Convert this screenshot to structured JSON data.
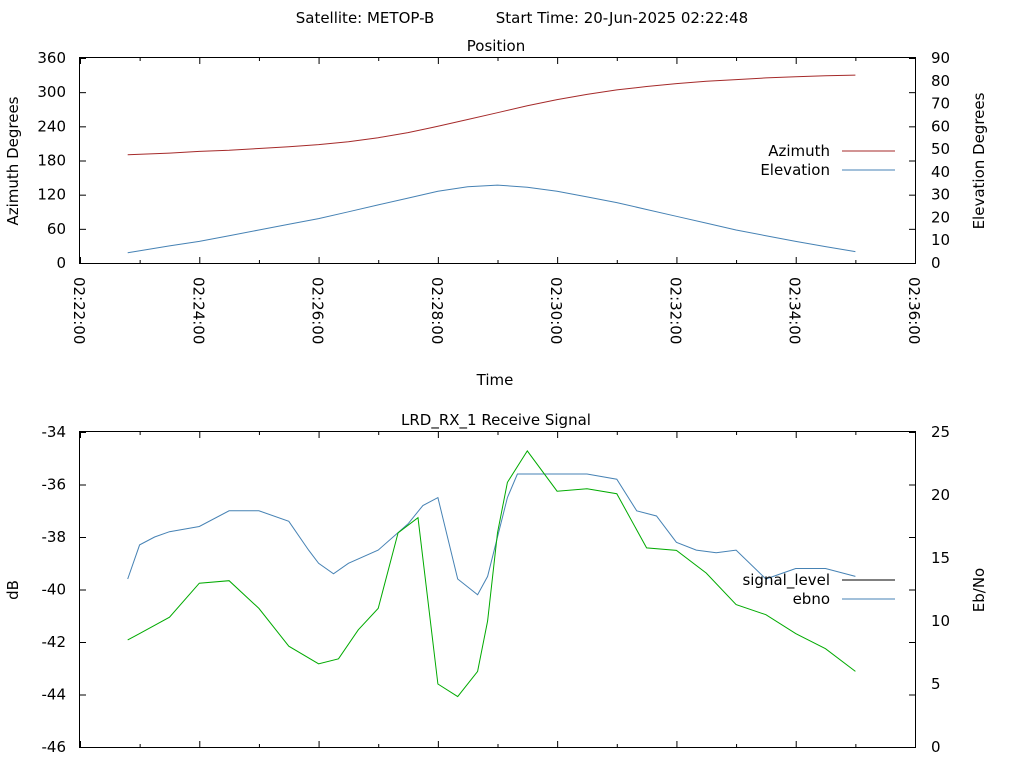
{
  "header": {
    "satellite": "Satellite: METOP-B",
    "start_time": "Start Time: 20-Jun-2025 02:22:48"
  },
  "chart_data": [
    {
      "type": "line",
      "title": "Position",
      "xlabel": "Time",
      "ylabel": "Azimuth Degrees",
      "y2label": "Elevation Degrees",
      "x_ticks": [
        "02:22:00",
        "02:24:00",
        "02:26:00",
        "02:28:00",
        "02:30:00",
        "02:32:00",
        "02:34:00",
        "02:36:00"
      ],
      "xlim": [
        "02:22:00",
        "02:36:00"
      ],
      "ylim": [
        0,
        360
      ],
      "y_ticks": [
        "0",
        "60",
        "120",
        "180",
        "240",
        "300",
        "360"
      ],
      "y2lim": [
        0,
        90
      ],
      "y2_ticks": [
        "0",
        "10",
        "20",
        "30",
        "40",
        "50",
        "60",
        "70",
        "80",
        "90"
      ],
      "legend_position": "right",
      "grid": false,
      "series": [
        {
          "name": "Azimuth",
          "axis": "y",
          "color": "#a52a2a",
          "x": [
            "02:22:48",
            "02:23:30",
            "02:24:00",
            "02:24:30",
            "02:25:00",
            "02:25:30",
            "02:26:00",
            "02:26:30",
            "02:27:00",
            "02:27:30",
            "02:28:00",
            "02:28:30",
            "02:29:00",
            "02:29:30",
            "02:30:00",
            "02:30:30",
            "02:31:00",
            "02:31:30",
            "02:32:00",
            "02:32:30",
            "02:33:00",
            "02:33:30",
            "02:34:00",
            "02:34:30",
            "02:35:00"
          ],
          "values": [
            190,
            193,
            196,
            198,
            201,
            204,
            208,
            213,
            220,
            229,
            240,
            252,
            264,
            276,
            287,
            296,
            304,
            310,
            315,
            319,
            322,
            325,
            327,
            329,
            330
          ]
        },
        {
          "name": "Elevation",
          "axis": "y2",
          "color": "#4682b4",
          "x": [
            "02:22:48",
            "02:23:30",
            "02:24:00",
            "02:24:30",
            "02:25:00",
            "02:25:30",
            "02:26:00",
            "02:26:30",
            "02:27:00",
            "02:27:30",
            "02:28:00",
            "02:28:30",
            "02:29:00",
            "02:29:30",
            "02:30:00",
            "02:30:30",
            "02:31:00",
            "02:31:30",
            "02:32:00",
            "02:32:30",
            "02:33:00",
            "02:33:30",
            "02:34:00",
            "02:34:30",
            "02:35:00"
          ],
          "values": [
            4.5,
            7.5,
            9.5,
            12,
            14.5,
            17,
            19.5,
            22.5,
            25.5,
            28.5,
            31.5,
            33.5,
            34.2,
            33.3,
            31.5,
            29,
            26.5,
            23.5,
            20.5,
            17.5,
            14.5,
            12,
            9.5,
            7.2,
            5
          ]
        }
      ]
    },
    {
      "type": "line",
      "title": "LRD_RX_1 Receive Signal",
      "ylabel": "dB",
      "y2label": "Eb/No",
      "ylim": [
        -46,
        -34
      ],
      "y_ticks": [
        "-34",
        "-36",
        "-38",
        "-40",
        "-42",
        "-44",
        "-46"
      ],
      "y2lim": [
        0,
        25
      ],
      "y2_ticks": [
        "0",
        "5",
        "10",
        "15",
        "20",
        "25"
      ],
      "xlim": [
        "02:22:00",
        "02:36:00"
      ],
      "legend_position": "right",
      "grid": false,
      "series": [
        {
          "name": "signal_level",
          "axis": "y",
          "color": "#4682b4",
          "x": [
            "02:22:48",
            "02:23:00",
            "02:23:15",
            "02:23:30",
            "02:24:00",
            "02:24:30",
            "02:25:00",
            "02:25:30",
            "02:25:50",
            "02:26:00",
            "02:26:15",
            "02:26:30",
            "02:27:00",
            "02:27:30",
            "02:27:45",
            "02:28:00",
            "02:28:20",
            "02:28:40",
            "02:28:50",
            "02:29:00",
            "02:29:10",
            "02:29:20",
            "02:29:40",
            "02:30:00",
            "02:30:30",
            "02:31:00",
            "02:31:20",
            "02:31:40",
            "02:32:00",
            "02:32:20",
            "02:32:40",
            "02:33:00",
            "02:33:30",
            "02:34:00",
            "02:34:30",
            "02:35:00"
          ],
          "values": [
            -39.6,
            -38.3,
            -38,
            -37.8,
            -37.6,
            -37,
            -37,
            -37.4,
            -38.5,
            -39,
            -39.4,
            -39,
            -38.5,
            -37.5,
            -36.8,
            -36.5,
            -39.6,
            -40.2,
            -39.5,
            -38,
            -36.5,
            -35.6,
            -35.6,
            -35.6,
            -35.6,
            -35.8,
            -37,
            -37.2,
            -38.2,
            -38.5,
            -38.6,
            -38.5,
            -39.6,
            -39.2,
            -39.2,
            -39.5
          ]
        },
        {
          "name": "ebno",
          "axis": "y2",
          "color": "#00aa00",
          "x": [
            "02:22:48",
            "02:23:00",
            "02:23:30",
            "02:24:00",
            "02:24:30",
            "02:25:00",
            "02:25:30",
            "02:26:00",
            "02:26:20",
            "02:26:40",
            "02:27:00",
            "02:27:20",
            "02:27:40",
            "02:28:00",
            "02:28:20",
            "02:28:40",
            "02:28:50",
            "02:29:00",
            "02:29:10",
            "02:29:30",
            "02:30:00",
            "02:30:30",
            "02:31:00",
            "02:31:30",
            "02:32:00",
            "02:32:30",
            "02:33:00",
            "02:33:30",
            "02:34:00",
            "02:34:30",
            "02:35:00"
          ],
          "values": [
            8.5,
            9,
            10.3,
            13,
            13.2,
            11,
            8,
            6.6,
            7,
            9.3,
            11,
            17,
            18.2,
            5,
            4,
            6,
            10,
            17,
            21,
            23.5,
            20.3,
            20.5,
            20.1,
            15.8,
            15.6,
            13.8,
            11.3,
            10.5,
            9,
            7.8,
            6
          ]
        }
      ]
    }
  ]
}
